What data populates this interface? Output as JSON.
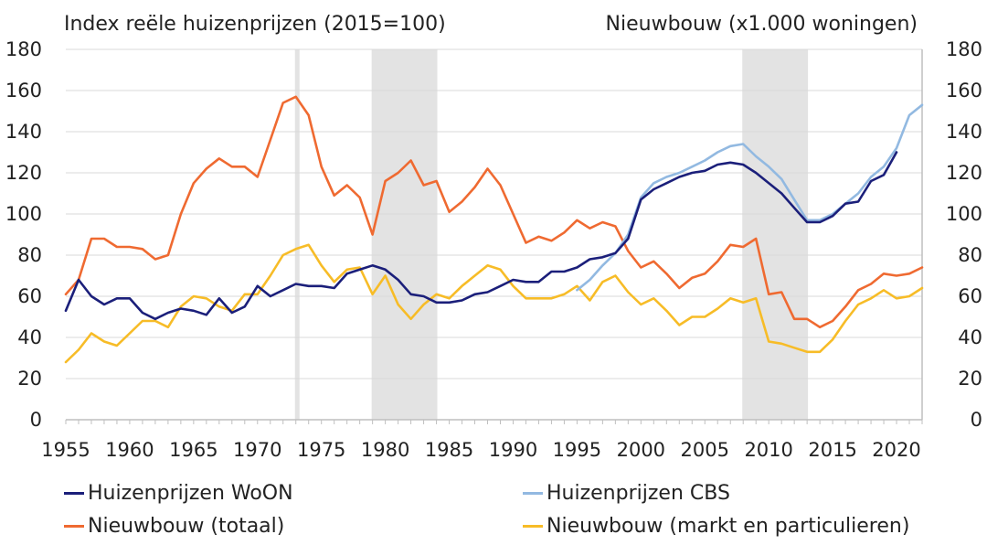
{
  "chart_data": {
    "type": "line",
    "ylabel_left": "Index reële huizenprijzen (2015=100)",
    "ylabel_right": "Nieuwbouw (x1.000 woningen)",
    "xlim": [
      1955,
      2022
    ],
    "ylim": [
      0,
      180
    ],
    "x_ticks": [
      "1955",
      "1960",
      "1965",
      "1970",
      "1975",
      "1980",
      "1985",
      "1990",
      "1995",
      "2000",
      "2005",
      "2010",
      "2015",
      "2020"
    ],
    "y_ticks": [
      "0",
      "20",
      "40",
      "60",
      "80",
      "100",
      "120",
      "140",
      "160",
      "180"
    ],
    "grid": "horizontal",
    "legend_position": "bottom",
    "shaded_periods": [
      [
        1973,
        1973.1
      ],
      [
        1979,
        1984
      ],
      [
        2008,
        2013
      ]
    ],
    "series": [
      {
        "name": "Huizenprijzen WoON",
        "color": "#1b1f7a",
        "x": [
          1955,
          1956,
          1957,
          1958,
          1959,
          1960,
          1961,
          1962,
          1963,
          1964,
          1965,
          1966,
          1967,
          1968,
          1969,
          1970,
          1971,
          1972,
          1973,
          1974,
          1975,
          1976,
          1977,
          1978,
          1979,
          1980,
          1981,
          1982,
          1983,
          1984,
          1985,
          1986,
          1987,
          1988,
          1989,
          1990,
          1991,
          1992,
          1993,
          1994,
          1995,
          1996,
          1997,
          1998,
          1999,
          2000,
          2001,
          2002,
          2003,
          2004,
          2005,
          2006,
          2007,
          2008,
          2009,
          2010,
          2011,
          2012,
          2013,
          2014,
          2015,
          2016,
          2017,
          2018,
          2019,
          2020
        ],
        "values": [
          53,
          68,
          60,
          56,
          59,
          59,
          52,
          49,
          52,
          54,
          53,
          51,
          59,
          52,
          55,
          65,
          60,
          63,
          66,
          65,
          65,
          64,
          71,
          73,
          75,
          73,
          68,
          61,
          60,
          57,
          57,
          58,
          61,
          62,
          65,
          68,
          67,
          67,
          72,
          72,
          74,
          78,
          79,
          81,
          88,
          107,
          112,
          115,
          118,
          120,
          121,
          124,
          125,
          124,
          120,
          115,
          110,
          103,
          96,
          96,
          99,
          105,
          106,
          116,
          119,
          130
        ]
      },
      {
        "name": "Huizenprijzen CBS",
        "color": "#92b9e1",
        "x": [
          1995,
          1996,
          1997,
          1998,
          1999,
          2000,
          2001,
          2002,
          2003,
          2004,
          2005,
          2006,
          2007,
          2008,
          2009,
          2010,
          2011,
          2012,
          2013,
          2014,
          2015,
          2016,
          2017,
          2018,
          2019,
          2020,
          2021,
          2022
        ],
        "values": [
          63,
          68,
          75,
          81,
          90,
          108,
          115,
          118,
          120,
          123,
          126,
          130,
          133,
          134,
          128,
          123,
          117,
          107,
          97,
          97,
          100,
          105,
          110,
          118,
          123,
          132,
          148,
          153
        ]
      },
      {
        "name": "Nieuwbouw (totaal)",
        "color": "#ef6a31",
        "x": [
          1955,
          1956,
          1957,
          1958,
          1959,
          1960,
          1961,
          1962,
          1963,
          1964,
          1965,
          1966,
          1967,
          1968,
          1969,
          1970,
          1971,
          1972,
          1973,
          1974,
          1975,
          1976,
          1977,
          1978,
          1979,
          1980,
          1981,
          1982,
          1983,
          1984,
          1985,
          1986,
          1987,
          1988,
          1989,
          1990,
          1991,
          1992,
          1993,
          1994,
          1995,
          1996,
          1997,
          1998,
          1999,
          2000,
          2001,
          2002,
          2003,
          2004,
          2005,
          2006,
          2007,
          2008,
          2009,
          2010,
          2011,
          2012,
          2013,
          2014,
          2015,
          2016,
          2017,
          2018,
          2019,
          2020,
          2021,
          2022
        ],
        "values": [
          61,
          68,
          88,
          88,
          84,
          84,
          83,
          78,
          80,
          100,
          115,
          122,
          127,
          123,
          123,
          118,
          136,
          154,
          157,
          148,
          123,
          109,
          114,
          108,
          90,
          116,
          120,
          126,
          114,
          116,
          101,
          106,
          113,
          122,
          114,
          100,
          86,
          89,
          87,
          91,
          97,
          93,
          96,
          94,
          82,
          74,
          77,
          71,
          64,
          69,
          71,
          77,
          85,
          84,
          88,
          61,
          62,
          49,
          49,
          45,
          48,
          55,
          63,
          66,
          71,
          70,
          71,
          74
        ]
      },
      {
        "name": "Nieuwbouw (markt en particulieren)",
        "color": "#f7bc27",
        "x": [
          1955,
          1956,
          1957,
          1958,
          1959,
          1960,
          1961,
          1962,
          1963,
          1964,
          1965,
          1966,
          1967,
          1968,
          1969,
          1970,
          1971,
          1972,
          1973,
          1974,
          1975,
          1976,
          1977,
          1978,
          1979,
          1980,
          1981,
          1982,
          1983,
          1984,
          1985,
          1986,
          1987,
          1988,
          1989,
          1990,
          1991,
          1992,
          1993,
          1994,
          1995,
          1996,
          1997,
          1998,
          1999,
          2000,
          2001,
          2002,
          2003,
          2004,
          2005,
          2006,
          2007,
          2008,
          2009,
          2010,
          2011,
          2012,
          2013,
          2014,
          2015,
          2016,
          2017,
          2018,
          2019,
          2020,
          2021,
          2022
        ],
        "values": [
          28,
          34,
          42,
          38,
          36,
          42,
          48,
          48,
          45,
          55,
          60,
          59,
          55,
          53,
          61,
          61,
          70,
          80,
          83,
          85,
          75,
          67,
          73,
          74,
          61,
          70,
          56,
          49,
          56,
          61,
          59,
          65,
          70,
          75,
          73,
          65,
          59,
          59,
          59,
          61,
          65,
          58,
          67,
          70,
          62,
          56,
          59,
          53,
          46,
          50,
          50,
          54,
          59,
          57,
          59,
          38,
          37,
          35,
          33,
          33,
          39,
          48,
          56,
          59,
          63,
          59,
          60,
          64
        ]
      }
    ]
  }
}
